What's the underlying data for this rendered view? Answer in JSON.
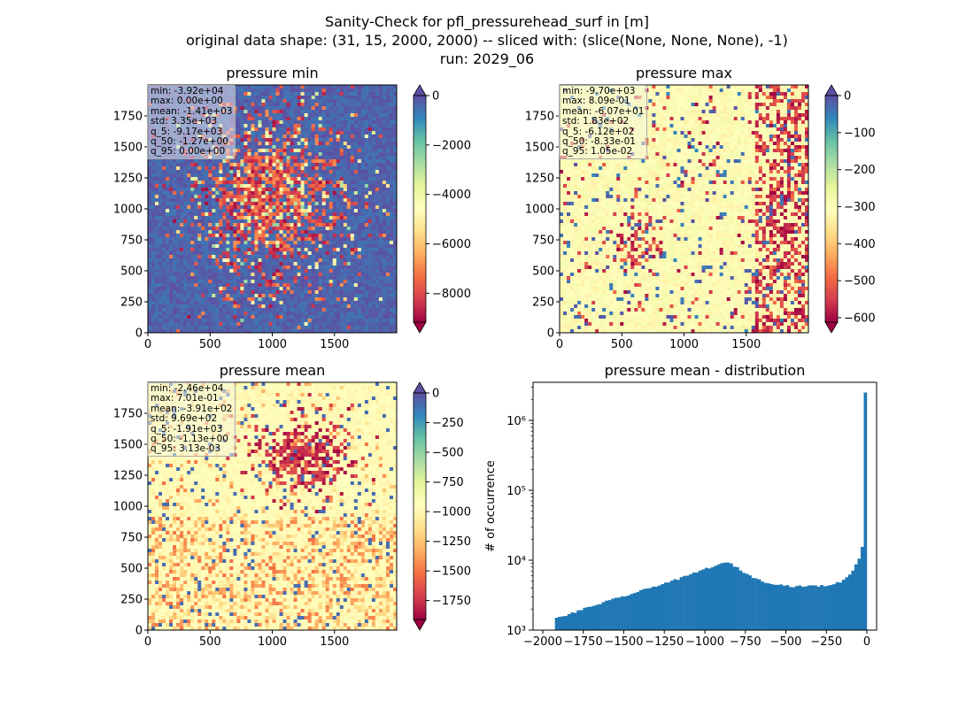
{
  "figure": {
    "title_line1": "Sanity-Check for pfl_pressurehead_surf in [m]",
    "title_line2": "original data shape: (31, 15, 2000, 2000) -- sliced with: (slice(None, None, None), -1)",
    "title_line3": "run: 2029_06"
  },
  "panels": [
    {
      "title": "pressure min",
      "stats": [
        "min: -3.92e+04",
        "max: 0.00e+00",
        "mean: -1.41e+03",
        "std: 3.35e+03",
        "q_5: -9.17e+03",
        "q_50: -1.27e+00",
        "q_95: 0.00e+00"
      ],
      "xticks": [
        "0",
        "500",
        "1000",
        "1500"
      ],
      "yticks": [
        "0",
        "250",
        "500",
        "750",
        "1000",
        "1250",
        "1500",
        "1750"
      ],
      "colorbar": {
        "vmin": -9170,
        "vmax": 0,
        "ticks": [
          0,
          -2000,
          -4000,
          -6000,
          -8000
        ],
        "tick_labels": [
          "0",
          "−2000",
          "−4000",
          "−6000",
          "−8000"
        ]
      },
      "dominant": "min"
    },
    {
      "title": "pressure max",
      "stats": [
        "min: -9.70e+03",
        "max: 8.09e-01",
        "mean: -6.07e+01",
        "std: 1.83e+02",
        "q_5: -6.12e+02",
        "q_50: -8.33e-01",
        "q_95: 1.05e-02"
      ],
      "xticks": [
        "0",
        "500",
        "1000",
        "1500"
      ],
      "yticks": [
        "0",
        "250",
        "500",
        "750",
        "1000",
        "1250",
        "1500",
        "1750"
      ],
      "colorbar": {
        "vmin": -612,
        "vmax": 0,
        "ticks": [
          0,
          -100,
          -200,
          -300,
          -400,
          -500,
          -600
        ],
        "tick_labels": [
          "0",
          "−100",
          "−200",
          "−300",
          "−400",
          "−500",
          "−600"
        ]
      },
      "dominant": "max"
    },
    {
      "title": "pressure mean",
      "stats": [
        "min: -2.46e+04",
        "max: 7.01e-01",
        "mean: -3.91e+02",
        "std: 9.69e+02",
        "q_5: -1.91e+03",
        "q_50: -1.13e+00",
        "q_95: 3.13e-03"
      ],
      "xticks": [
        "0",
        "500",
        "1000",
        "1500"
      ],
      "yticks": [
        "0",
        "250",
        "500",
        "750",
        "1000",
        "1250",
        "1500",
        "1750"
      ],
      "colorbar": {
        "vmin": -1910,
        "vmax": 0,
        "ticks": [
          0,
          -250,
          -500,
          -750,
          -1000,
          -1250,
          -1500,
          -1750
        ],
        "tick_labels": [
          "0",
          "−250",
          "−500",
          "−750",
          "−1000",
          "−1250",
          "−1500",
          "−1750"
        ]
      },
      "dominant": "max"
    }
  ],
  "histogram": {
    "title": "pressure mean - distribution",
    "ylabel": "# of occurrence",
    "xticks": [
      "−2000",
      "−1750",
      "−1500",
      "−1250",
      "−1000",
      "−750",
      "−500",
      "−250",
      "0"
    ],
    "yticks": [
      "10³",
      "10⁴",
      "10⁵",
      "10⁶"
    ]
  },
  "colors": {
    "spectral": [
      "#9e0142",
      "#d53e4f",
      "#f46d43",
      "#fdae61",
      "#fee08b",
      "#ffffbf",
      "#e6f598",
      "#abdda4",
      "#66c2a5",
      "#3288bd",
      "#5e4fa2"
    ],
    "bar": "#1f77b4"
  },
  "chart_data": [
    {
      "type": "heatmap",
      "title": "pressure min",
      "x_range": [
        0,
        2000
      ],
      "y_range": [
        0,
        2000
      ],
      "colormap": "Spectral",
      "color_range": [
        -9170,
        0
      ],
      "colorbar_extend": "both"
    },
    {
      "type": "heatmap",
      "title": "pressure max",
      "x_range": [
        0,
        2000
      ],
      "y_range": [
        0,
        2000
      ],
      "colormap": "Spectral",
      "color_range": [
        -612,
        0
      ],
      "colorbar_extend": "both"
    },
    {
      "type": "heatmap",
      "title": "pressure mean",
      "x_range": [
        0,
        2000
      ],
      "y_range": [
        0,
        2000
      ],
      "colormap": "Spectral",
      "color_range": [
        -1910,
        0
      ],
      "colorbar_extend": "both"
    },
    {
      "type": "bar",
      "title": "pressure mean - distribution",
      "ylabel": "# of occurrence",
      "y_scale": "log",
      "xlim": [
        -2060,
        60
      ],
      "ylim": [
        1000,
        3500000
      ],
      "bins": {
        "x": [
          -1925,
          -1850,
          -1750,
          -1600,
          -1450,
          -1300,
          -1150,
          -1000,
          -900,
          -850,
          -750,
          -650,
          -550,
          -450,
          -350,
          -250,
          -150,
          -100,
          -50,
          -30,
          -15,
          -8,
          -3,
          -1
        ],
        "y": [
          1450,
          1650,
          2000,
          2600,
          3300,
          4300,
          5500,
          7500,
          8800,
          9300,
          6500,
          5000,
          4500,
          4200,
          4300,
          4300,
          5000,
          6500,
          10000,
          15000,
          26000,
          40000,
          120000,
          2500000
        ]
      }
    }
  ]
}
